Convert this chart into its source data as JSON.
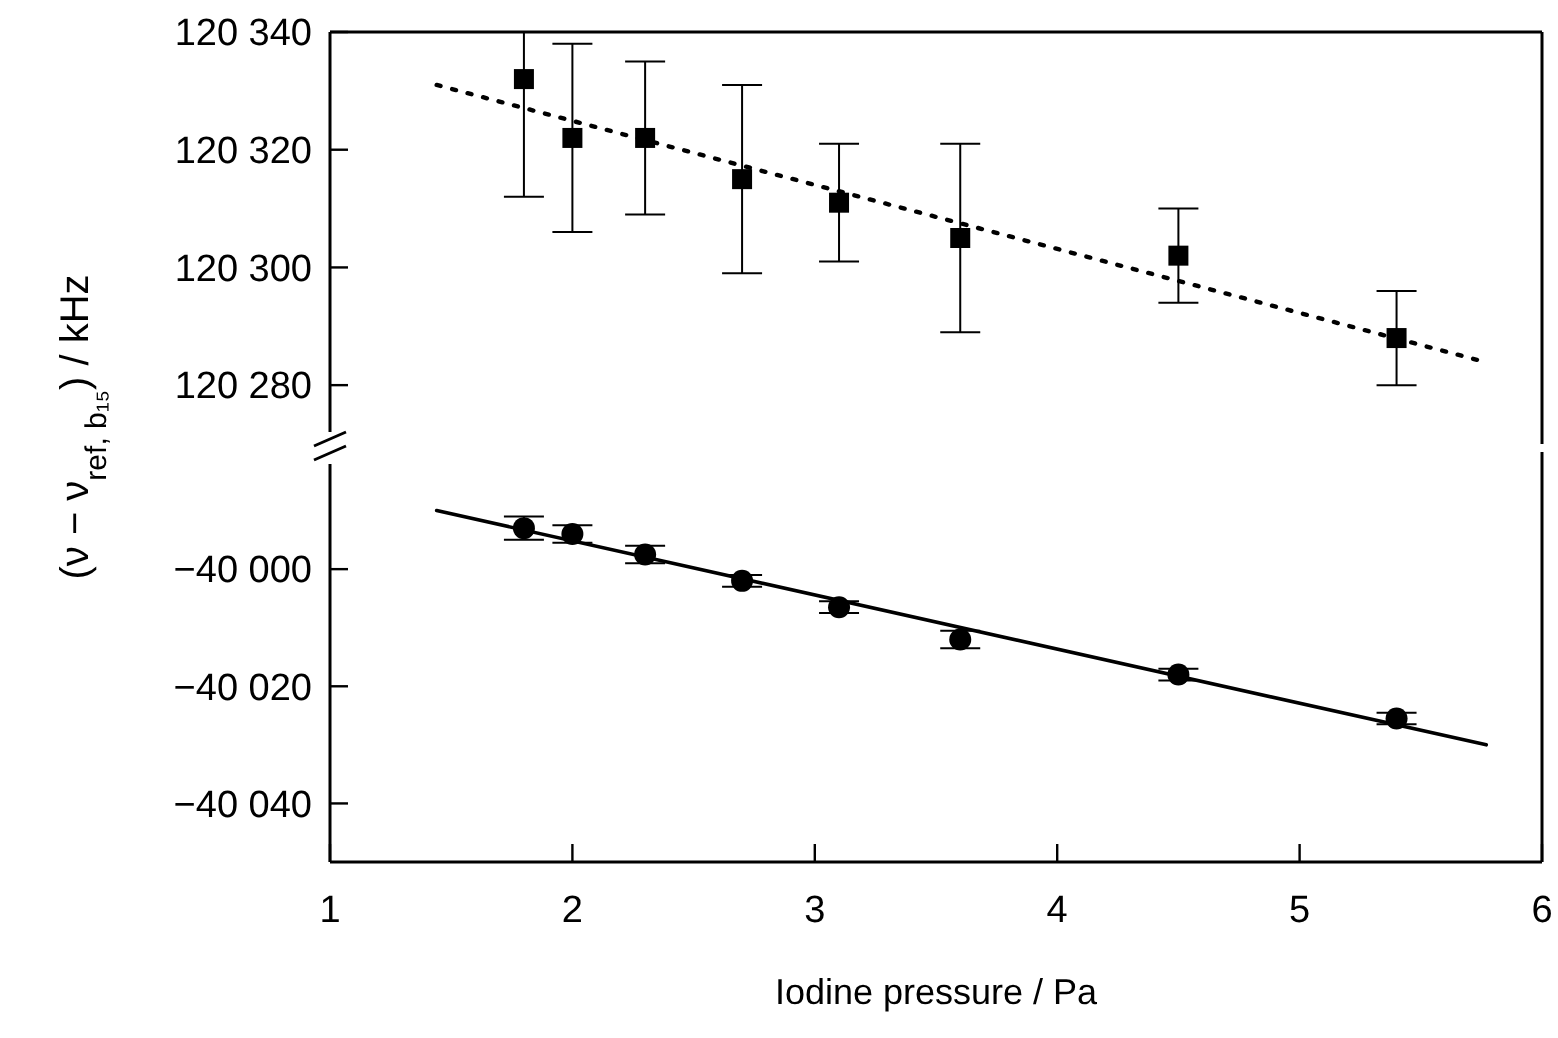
{
  "chart_data": [
    {
      "type": "scatter",
      "ylabel": "(ν − ν$_{ref, b₁₅}$) / kHz",
      "xlim": [
        1,
        6
      ],
      "ylim": [
        120270,
        120340
      ],
      "yticks": [
        {
          "value": 120280,
          "label": "120 280"
        },
        {
          "value": 120300,
          "label": "120 300"
        },
        {
          "value": 120320,
          "label": "120 320"
        },
        {
          "value": 120340,
          "label": "120 340"
        }
      ],
      "tick_labels": "y",
      "series": [
        {
          "type": "scatter",
          "marker": "square",
          "color": "#000000",
          "x": [
            1.8,
            2.0,
            2.3,
            2.7,
            3.1,
            3.6,
            4.5,
            5.4
          ],
          "values": [
            120332,
            120322,
            120322,
            120315,
            120311,
            120305,
            120302,
            120288
          ],
          "errors": [
            [
              120312,
              120340
            ],
            16,
            13,
            16,
            10,
            16,
            8,
            8
          ]
        },
        {
          "type": "line",
          "line_style": "dotted",
          "color": "#000000",
          "x": [
            1.44,
            5.76
          ],
          "values": [
            120331,
            120284
          ]
        }
      ]
    },
    {
      "type": "scatter",
      "xlabel": "Iodine pressure / Pa",
      "xlim": [
        1,
        6
      ],
      "xticks": [
        1,
        2,
        3,
        4,
        5,
        6
      ],
      "ylim": [
        -40050,
        -39980
      ],
      "yticks": [
        {
          "value": -40040,
          "label": "−40 040"
        },
        {
          "value": -40020,
          "label": "−40 020"
        },
        {
          "value": -40000,
          "label": "−40 000"
        }
      ],
      "series": [
        {
          "type": "scatter",
          "marker": "circle",
          "color": "#000000",
          "x": [
            1.8,
            2.0,
            2.3,
            2.7,
            3.1,
            3.6,
            4.5,
            5.4
          ],
          "values": [
            -39993,
            -39994,
            -39997.5,
            -40002,
            -40006.5,
            -40012,
            -40018,
            -40025.5
          ],
          "errors": [
            2,
            1.5,
            1.5,
            1,
            1,
            1.5,
            1,
            1
          ]
        },
        {
          "type": "line",
          "line_style": "solid",
          "color": "#000000",
          "x": [
            1.44,
            5.77
          ],
          "values": [
            -39990,
            -40030
          ]
        }
      ]
    }
  ]
}
